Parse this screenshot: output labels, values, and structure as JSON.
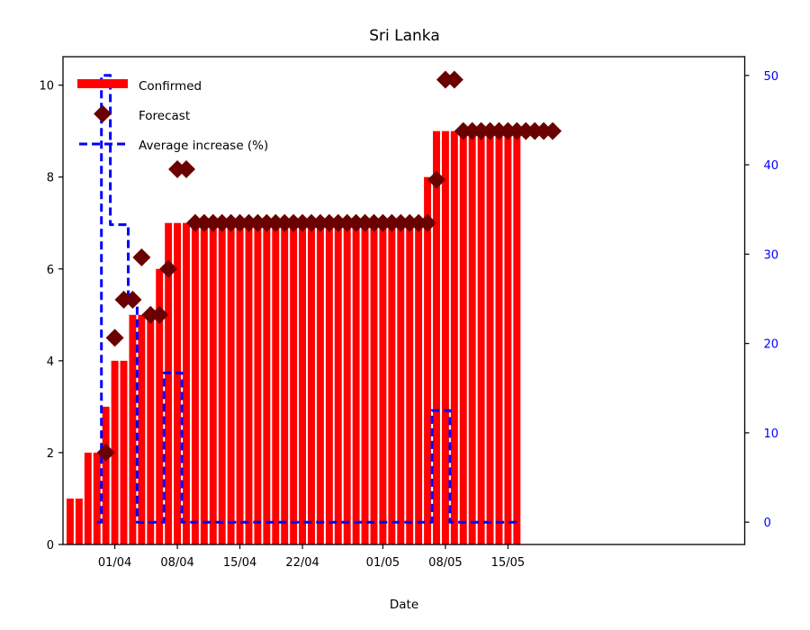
{
  "chart_data": {
    "type": "bar",
    "title": "Sri Lanka",
    "xlabel": "Date",
    "ylabel": "",
    "ylabel_right": "",
    "x_range_day": [
      -0.8,
      75.5
    ],
    "ylim": [
      0,
      10.62
    ],
    "ylim_right": [
      -2.5,
      52.1
    ],
    "x_ticks": [
      {
        "day": 5,
        "label": "01/04"
      },
      {
        "day": 12,
        "label": "08/04"
      },
      {
        "day": 19,
        "label": "15/04"
      },
      {
        "day": 26,
        "label": "22/04"
      },
      {
        "day": 35,
        "label": "01/05"
      },
      {
        "day": 42,
        "label": "08/05"
      },
      {
        "day": 49,
        "label": "15/05"
      }
    ],
    "y_ticks_left": [
      0,
      2,
      4,
      6,
      8,
      10
    ],
    "y_ticks_right": [
      0,
      10,
      20,
      30,
      40,
      50
    ],
    "colors": {
      "confirmed": "#ff0000",
      "forecast": "#6b0000",
      "average_increase": "#0000ff",
      "right_axis": "#0000ff"
    },
    "series": [
      {
        "name": "Confirmed",
        "kind": "bar",
        "axis": "left",
        "start_day": 0,
        "values": [
          1,
          1,
          2,
          2,
          3,
          4,
          4,
          5,
          5,
          5,
          6,
          7,
          7,
          7,
          7,
          7,
          7,
          7,
          7,
          7,
          7,
          7,
          7,
          7,
          7,
          7,
          7,
          7,
          7,
          7,
          7,
          7,
          7,
          7,
          7,
          7,
          7,
          7,
          7,
          7,
          8,
          9,
          9,
          9,
          9,
          9,
          9,
          9,
          9,
          9,
          9
        ]
      },
      {
        "name": "Forecast",
        "kind": "marker",
        "axis": "left",
        "points": [
          [
            4,
            2.0
          ],
          [
            5,
            4.5
          ],
          [
            6,
            5.33
          ],
          [
            7,
            5.33
          ],
          [
            8,
            6.25
          ],
          [
            9,
            5.0
          ],
          [
            10,
            5.0
          ],
          [
            11,
            6.0
          ],
          [
            12,
            8.17
          ],
          [
            13,
            8.17
          ],
          [
            14,
            7.0
          ],
          [
            15,
            7.0
          ],
          [
            16,
            7.0
          ],
          [
            17,
            7.0
          ],
          [
            18,
            7.0
          ],
          [
            19,
            7.0
          ],
          [
            20,
            7.0
          ],
          [
            21,
            7.0
          ],
          [
            22,
            7.0
          ],
          [
            23,
            7.0
          ],
          [
            24,
            7.0
          ],
          [
            25,
            7.0
          ],
          [
            26,
            7.0
          ],
          [
            27,
            7.0
          ],
          [
            28,
            7.0
          ],
          [
            29,
            7.0
          ],
          [
            30,
            7.0
          ],
          [
            31,
            7.0
          ],
          [
            32,
            7.0
          ],
          [
            33,
            7.0
          ],
          [
            34,
            7.0
          ],
          [
            35,
            7.0
          ],
          [
            36,
            7.0
          ],
          [
            37,
            7.0
          ],
          [
            38,
            7.0
          ],
          [
            39,
            7.0
          ],
          [
            40,
            7.0
          ],
          [
            41,
            7.94
          ],
          [
            42,
            10.12
          ],
          [
            43,
            10.12
          ],
          [
            44,
            9.0
          ],
          [
            45,
            9.0
          ],
          [
            46,
            9.0
          ],
          [
            47,
            9.0
          ],
          [
            48,
            9.0
          ],
          [
            49,
            9.0
          ],
          [
            50,
            9.0
          ],
          [
            51,
            9.0
          ],
          [
            52,
            9.0
          ],
          [
            53,
            9.0
          ],
          [
            54,
            9.0
          ]
        ]
      },
      {
        "name": "Average increase (%)",
        "kind": "line",
        "axis": "right",
        "points": [
          [
            3,
            0
          ],
          [
            4,
            50
          ],
          [
            5,
            33.3
          ],
          [
            6,
            33.3
          ],
          [
            7,
            25
          ],
          [
            8,
            0
          ],
          [
            9,
            0
          ],
          [
            10,
            0
          ],
          [
            11,
            16.7
          ],
          [
            12,
            16.7
          ],
          [
            13,
            0
          ],
          [
            14,
            0
          ],
          [
            15,
            0
          ],
          [
            16,
            0
          ],
          [
            17,
            0
          ],
          [
            18,
            0
          ],
          [
            19,
            0
          ],
          [
            20,
            0
          ],
          [
            21,
            0
          ],
          [
            22,
            0
          ],
          [
            23,
            0
          ],
          [
            24,
            0
          ],
          [
            25,
            0
          ],
          [
            26,
            0
          ],
          [
            27,
            0
          ],
          [
            28,
            0
          ],
          [
            29,
            0
          ],
          [
            30,
            0
          ],
          [
            31,
            0
          ],
          [
            32,
            0
          ],
          [
            33,
            0
          ],
          [
            34,
            0
          ],
          [
            35,
            0
          ],
          [
            36,
            0
          ],
          [
            37,
            0
          ],
          [
            38,
            0
          ],
          [
            39,
            0
          ],
          [
            40,
            0
          ],
          [
            41,
            12.5
          ],
          [
            42,
            12.5
          ],
          [
            43,
            0
          ],
          [
            44,
            0
          ],
          [
            45,
            0
          ],
          [
            46,
            0
          ],
          [
            47,
            0
          ],
          [
            48,
            0
          ],
          [
            49,
            0
          ],
          [
            50,
            0
          ]
        ]
      }
    ],
    "legend": {
      "position": "top-left",
      "entries": [
        "Confirmed",
        "Forecast",
        "Average increase (%)"
      ]
    },
    "grid": false
  }
}
